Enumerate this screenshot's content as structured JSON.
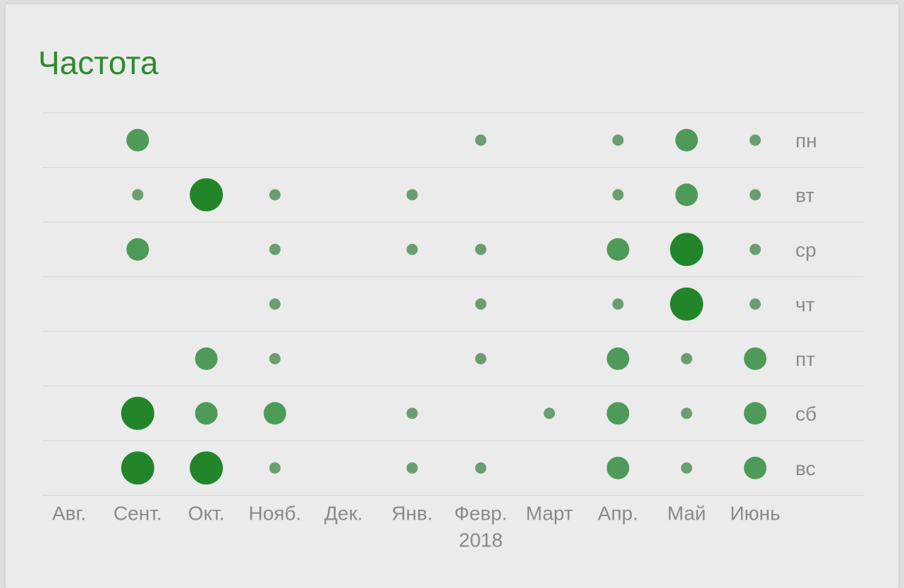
{
  "title": "Частота",
  "colors": {
    "accent": "#2e8b2e",
    "dot_small": "#6a9e70",
    "dot_medium": "#4e9a58",
    "dot_large": "#22852a",
    "gridline": "#d6d6d6",
    "tick_text": "#8a8a8a"
  },
  "chart_data": {
    "type": "scatter",
    "subtype": "punch-card",
    "x_categories": [
      "Авг.",
      "Сент.",
      "Окт.",
      "Нояб.",
      "Дек.",
      "Янв.",
      "Февр.",
      "Март",
      "Апр.",
      "Май",
      "Июнь"
    ],
    "x_year_label": {
      "category": "Февр.",
      "text": "2018"
    },
    "y_categories": [
      "пн",
      "вт",
      "ср",
      "чт",
      "пт",
      "сб",
      "вс"
    ],
    "y_axis_position": "right",
    "grid": "horizontal",
    "size_scale": [
      1,
      2,
      3
    ],
    "points": [
      {
        "x": "Сент.",
        "y": "пн",
        "size": 2
      },
      {
        "x": "Февр.",
        "y": "пн",
        "size": 1
      },
      {
        "x": "Апр.",
        "y": "пн",
        "size": 1
      },
      {
        "x": "Май",
        "y": "пн",
        "size": 2
      },
      {
        "x": "Июнь",
        "y": "пн",
        "size": 1
      },
      {
        "x": "Сент.",
        "y": "вт",
        "size": 1
      },
      {
        "x": "Окт.",
        "y": "вт",
        "size": 3
      },
      {
        "x": "Нояб.",
        "y": "вт",
        "size": 1
      },
      {
        "x": "Янв.",
        "y": "вт",
        "size": 1
      },
      {
        "x": "Апр.",
        "y": "вт",
        "size": 1
      },
      {
        "x": "Май",
        "y": "вт",
        "size": 2
      },
      {
        "x": "Июнь",
        "y": "вт",
        "size": 1
      },
      {
        "x": "Сент.",
        "y": "ср",
        "size": 2
      },
      {
        "x": "Нояб.",
        "y": "ср",
        "size": 1
      },
      {
        "x": "Янв.",
        "y": "ср",
        "size": 1
      },
      {
        "x": "Февр.",
        "y": "ср",
        "size": 1
      },
      {
        "x": "Апр.",
        "y": "ср",
        "size": 2
      },
      {
        "x": "Май",
        "y": "ср",
        "size": 3
      },
      {
        "x": "Июнь",
        "y": "ср",
        "size": 1
      },
      {
        "x": "Нояб.",
        "y": "чт",
        "size": 1
      },
      {
        "x": "Февр.",
        "y": "чт",
        "size": 1
      },
      {
        "x": "Апр.",
        "y": "чт",
        "size": 1
      },
      {
        "x": "Май",
        "y": "чт",
        "size": 3
      },
      {
        "x": "Июнь",
        "y": "чт",
        "size": 1
      },
      {
        "x": "Окт.",
        "y": "пт",
        "size": 2
      },
      {
        "x": "Нояб.",
        "y": "пт",
        "size": 1
      },
      {
        "x": "Февр.",
        "y": "пт",
        "size": 1
      },
      {
        "x": "Апр.",
        "y": "пт",
        "size": 2
      },
      {
        "x": "Май",
        "y": "пт",
        "size": 1
      },
      {
        "x": "Июнь",
        "y": "пт",
        "size": 2
      },
      {
        "x": "Сент.",
        "y": "сб",
        "size": 3
      },
      {
        "x": "Окт.",
        "y": "сб",
        "size": 2
      },
      {
        "x": "Нояб.",
        "y": "сб",
        "size": 2
      },
      {
        "x": "Янв.",
        "y": "сб",
        "size": 1
      },
      {
        "x": "Март",
        "y": "сб",
        "size": 1
      },
      {
        "x": "Апр.",
        "y": "сб",
        "size": 2
      },
      {
        "x": "Май",
        "y": "сб",
        "size": 1
      },
      {
        "x": "Июнь",
        "y": "сб",
        "size": 2
      },
      {
        "x": "Сент.",
        "y": "вс",
        "size": 3
      },
      {
        "x": "Окт.",
        "y": "вс",
        "size": 3
      },
      {
        "x": "Нояб.",
        "y": "вс",
        "size": 1
      },
      {
        "x": "Янв.",
        "y": "вс",
        "size": 1
      },
      {
        "x": "Февр.",
        "y": "вс",
        "size": 1
      },
      {
        "x": "Апр.",
        "y": "вс",
        "size": 2
      },
      {
        "x": "Май",
        "y": "вс",
        "size": 1
      },
      {
        "x": "Июнь",
        "y": "вс",
        "size": 2
      }
    ]
  }
}
